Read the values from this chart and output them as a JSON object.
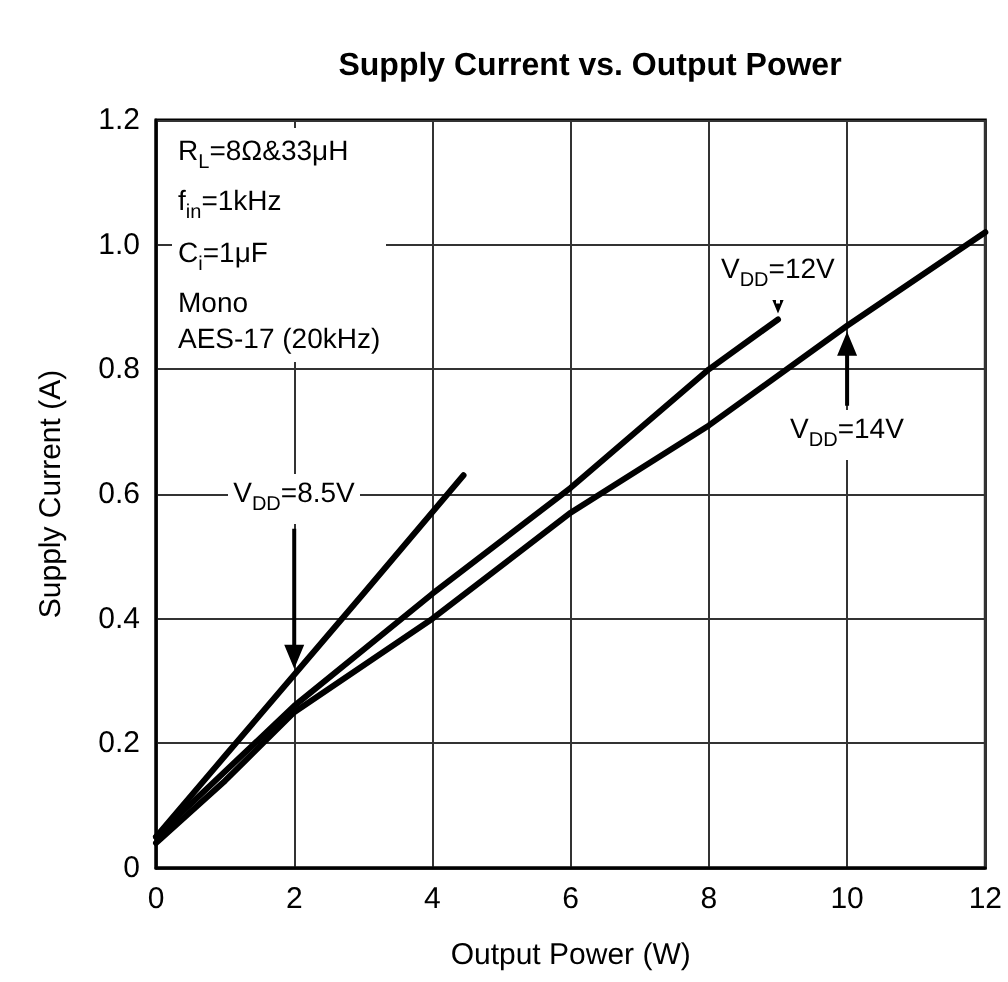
{
  "chart_data": {
    "type": "line",
    "title": "Supply Current vs. Output Power",
    "xlabel": "Output Power (W)",
    "ylabel": "Supply Current (A)",
    "annotations": [
      "R$_{L}$=8Ω&33μH",
      "f$_{in}$=1kHz",
      "C$_{i}$=1μF",
      "Mono",
      "AES-17 (20kHz)"
    ],
    "series": [
      {
        "name": "V$_{DD}$=8.5V",
        "color": "#000000",
        "x": [
          0,
          1,
          2,
          3,
          4.45
        ],
        "values": [
          0.05,
          0.18,
          0.31,
          0.44,
          0.63
        ]
      },
      {
        "name": "V$_{DD}$=12V",
        "color": "#000000",
        "x": [
          0,
          2,
          4,
          6,
          8,
          9
        ],
        "values": [
          0.05,
          0.26,
          0.44,
          0.61,
          0.8,
          0.88
        ]
      },
      {
        "name": "V$_{DD}$=14V",
        "color": "#000000",
        "x": [
          0,
          1,
          2,
          4,
          6,
          8,
          10,
          12
        ],
        "values": [
          0.04,
          0.14,
          0.25,
          0.4,
          0.57,
          0.71,
          0.87,
          1.02
        ]
      }
    ],
    "xlim": [
      0,
      12
    ],
    "xticks": [
      0,
      2,
      4,
      6,
      8,
      10,
      12
    ],
    "ylim": [
      0,
      1.2
    ],
    "yticks": [
      0,
      0.2,
      0.4,
      0.6,
      0.8,
      {
        "value": 1,
        "label": "1.0"
      },
      1.2
    ],
    "grid": true,
    "marker": "none",
    "line_style": "solid"
  }
}
